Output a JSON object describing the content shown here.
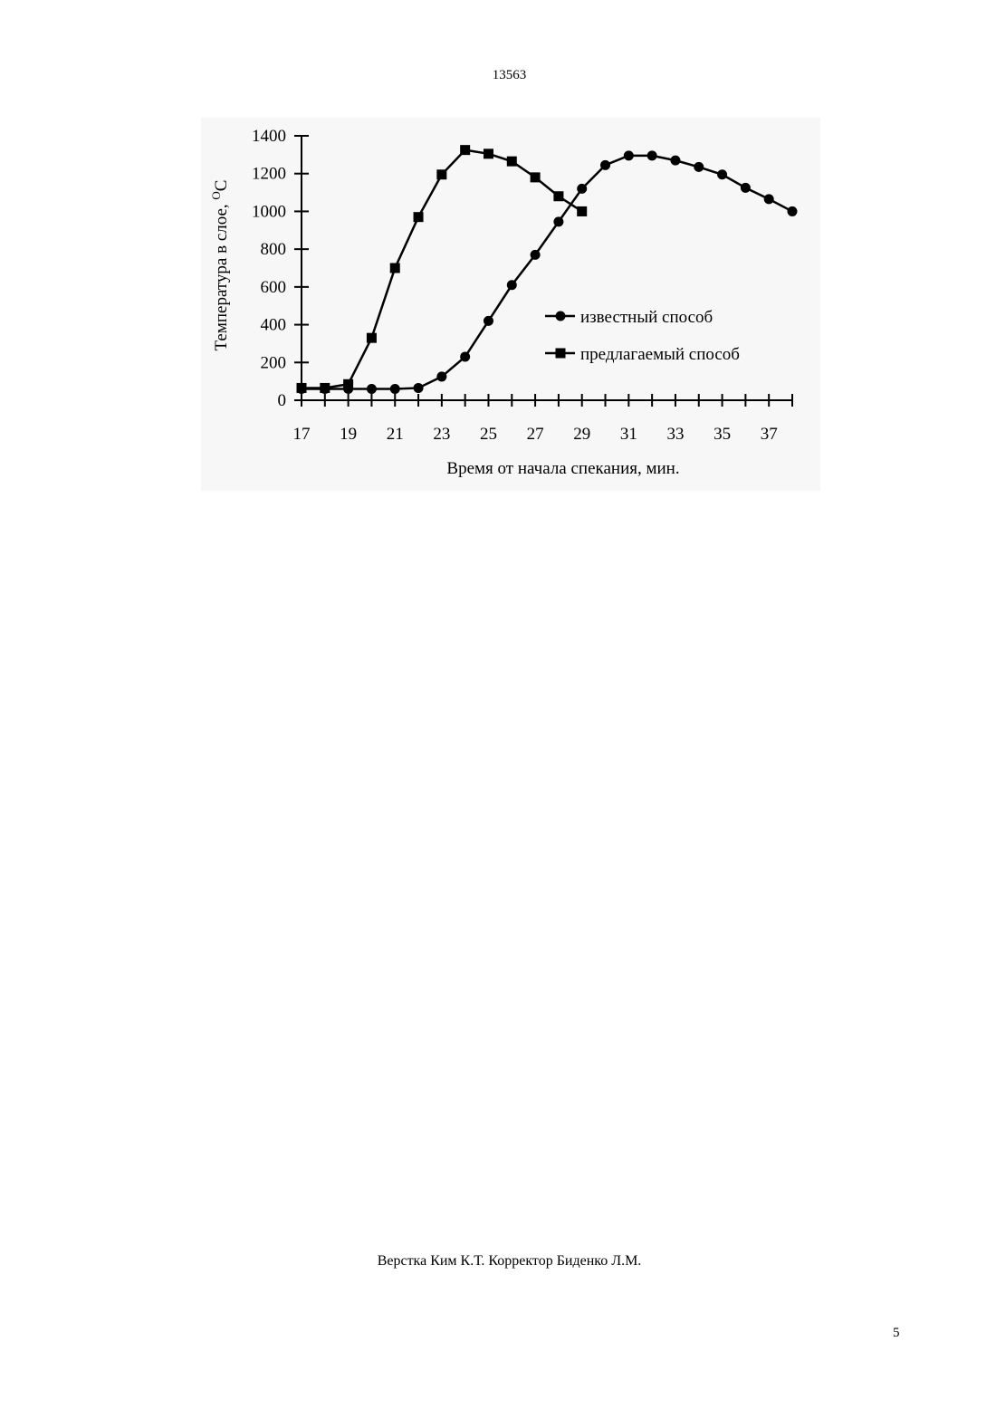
{
  "page": {
    "header_number": "13563",
    "footer_credits": "Верстка Ким К.Т.  Корректор Биденко Л.М.",
    "page_number": "5"
  },
  "chart_data": {
    "type": "line",
    "title": "",
    "xlabel": "Время от начала спекания,  мин.",
    "ylabel": "Температура в слое, ",
    "ylabel_unit": "C",
    "ylabel_unit_sup": "O",
    "xlim": [
      17,
      38
    ],
    "ylim": [
      0,
      1400
    ],
    "xticks": [
      17,
      19,
      21,
      23,
      25,
      27,
      29,
      31,
      33,
      35,
      37
    ],
    "yticks": [
      0,
      200,
      400,
      600,
      800,
      1000,
      1200,
      1400
    ],
    "grid": false,
    "legend_position": "center-right",
    "series": [
      {
        "name": "известный способ",
        "marker": "circle",
        "x": [
          17,
          18,
          19,
          20,
          21,
          22,
          23,
          24,
          25,
          26,
          27,
          28,
          29,
          30,
          31,
          32,
          33,
          34,
          35,
          36,
          37,
          38
        ],
        "y": [
          60,
          60,
          60,
          60,
          60,
          65,
          125,
          230,
          420,
          610,
          770,
          945,
          1120,
          1245,
          1295,
          1295,
          1270,
          1235,
          1195,
          1125,
          1065,
          1000
        ]
      },
      {
        "name": "предлагаемый способ",
        "marker": "square",
        "x": [
          17,
          18,
          19,
          20,
          21,
          22,
          23,
          24,
          25,
          26,
          27,
          28,
          29
        ],
        "y": [
          65,
          65,
          85,
          330,
          700,
          970,
          1195,
          1325,
          1305,
          1265,
          1180,
          1080,
          1000
        ]
      }
    ]
  }
}
